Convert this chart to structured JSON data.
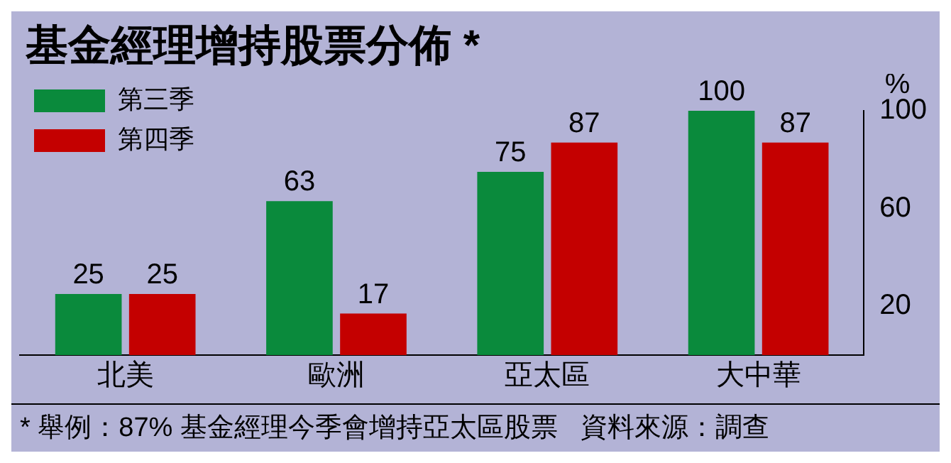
{
  "chart_data": {
    "type": "bar",
    "title": "基金經理增持股票分佈 *",
    "ylabel": "%",
    "categories": [
      "北美",
      "歐洲",
      "亞太區",
      "大中華"
    ],
    "series": [
      {
        "name": "第三季",
        "color": "#0a8a3c",
        "values": [
          25,
          63,
          75,
          100
        ]
      },
      {
        "name": "第四季",
        "color": "#c40000",
        "values": [
          25,
          17,
          87,
          87
        ]
      }
    ],
    "ylim": [
      0,
      100
    ],
    "yticks": [
      20,
      60,
      100
    ],
    "data_labels": true,
    "legend": "top left",
    "annotations": [
      "* 舉例：87% 基金經理今季會增持亞太區股票",
      "資料來源：調查"
    ]
  }
}
